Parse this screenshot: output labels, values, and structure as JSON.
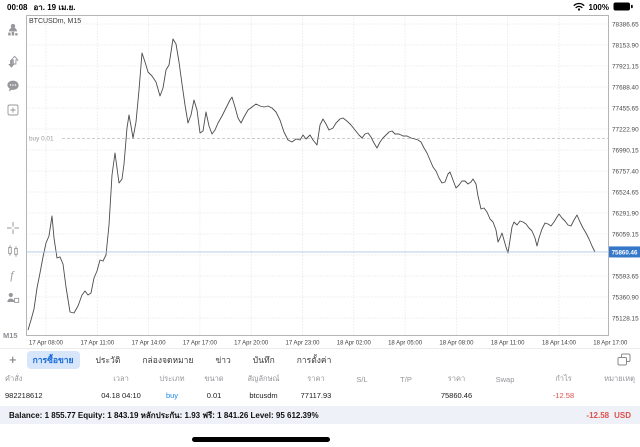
{
  "status_bar": {
    "time": "00:08",
    "date": "อา. 19 เม.ย.",
    "battery_percent": "100%"
  },
  "sidebar": {
    "timeframe": "M15"
  },
  "tabs": {
    "plus_label": "+",
    "items": [
      "การซื้อขาย",
      "ประวัติ",
      "กล่องจดหมาย",
      "ข่าว",
      "บันทึก",
      "การตั้งค่า"
    ],
    "selected_index": 0
  },
  "positions_table": {
    "headers": [
      "คำสั่ง",
      "เวลา",
      "ประเภท",
      "ขนาด",
      "สัญลักษณ์",
      "ราคา",
      "S/L",
      "T/P",
      "ราคา",
      "Swap",
      "กำไร",
      "หมายเหตุ"
    ],
    "rows": [
      {
        "cells": [
          "982218612",
          "04.18 04:10",
          "buy",
          "0.01",
          "btcusdm",
          "77117.93",
          "",
          "",
          "75860.46",
          "",
          "-12.58",
          ""
        ]
      }
    ]
  },
  "account_bar": {
    "summary": "Balance: 1 855.77 Equity: 1 843.19 หลักประกัน: 1.93 ฟรี: 1 841.26 Level: 95 612.39%",
    "profit": "-12.58",
    "currency": "USD"
  },
  "colors": {
    "badge_blue": "#3577c9",
    "buy_blue": "#1f87e8",
    "loss_red": "#e0504c",
    "selected_tab_bg": "#d7e6fa",
    "selected_tab_text": "#1669d6",
    "current_price_line": "#b3c4e0",
    "chart_line": "#4c4c4c"
  },
  "chart_data": {
    "type": "line",
    "title": "BTCUSDm, M15",
    "symbol": "BTCUSDm",
    "timeframe": "M15",
    "grid": true,
    "ylim": [
      75128.15,
      78386.65
    ],
    "y_axis": {
      "ticks": [
        78386.65,
        78153.9,
        77921.15,
        77688.4,
        77455.65,
        77222.9,
        76990.15,
        76757.4,
        76524.65,
        76291.9,
        76059.15,
        75826.4,
        75593.65,
        75360.9,
        75128.15
      ],
      "step": 232.75
    },
    "x_axis": {
      "ticks": [
        "17 Apr 08:00",
        "17 Apr 11:00",
        "17 Apr 14:00",
        "17 Apr 17:00",
        "17 Apr 20:00",
        "17 Apr 23:00",
        "18 Apr 02:00",
        "18 Apr 05:00",
        "18 Apr 08:00",
        "18 Apr 11:00",
        "18 Apr 14:00",
        "18 Apr 17:00"
      ]
    },
    "current_price": 75860.46,
    "order_line": {
      "label": "buy 0.01",
      "price": 77117.93
    },
    "series": [
      {
        "name": "BTCUSDm M15 close",
        "points": [
          [
            28,
            74995
          ],
          [
            31,
            75106
          ],
          [
            34,
            75228
          ],
          [
            37,
            75461
          ],
          [
            40,
            75627
          ],
          [
            43,
            75804
          ],
          [
            46,
            75959
          ],
          [
            49,
            76037
          ],
          [
            52,
            76259
          ],
          [
            54,
            76015
          ],
          [
            57,
            75793
          ],
          [
            60,
            75805
          ],
          [
            63,
            75727
          ],
          [
            66,
            75472
          ],
          [
            70,
            75195
          ],
          [
            74,
            75184
          ],
          [
            78,
            75261
          ],
          [
            82,
            75383
          ],
          [
            85,
            75427
          ],
          [
            88,
            75383
          ],
          [
            91,
            75405
          ],
          [
            94,
            75571
          ],
          [
            97,
            75649
          ],
          [
            100,
            75771
          ],
          [
            103,
            75760
          ],
          [
            106,
            75826
          ],
          [
            109,
            76159
          ],
          [
            112,
            76713
          ],
          [
            115,
            76957
          ],
          [
            117,
            76791
          ],
          [
            119,
            76624
          ],
          [
            122,
            76669
          ],
          [
            124,
            76835
          ],
          [
            127,
            77234
          ],
          [
            129,
            77378
          ],
          [
            131,
            77256
          ],
          [
            133,
            77123
          ],
          [
            136,
            77300
          ],
          [
            139,
            77655
          ],
          [
            142,
            78065
          ],
          [
            145,
            77966
          ],
          [
            148,
            77855
          ],
          [
            152,
            77810
          ],
          [
            156,
            77744
          ],
          [
            160,
            77589
          ],
          [
            163,
            77677
          ],
          [
            166,
            77877
          ],
          [
            169,
            77932
          ],
          [
            171,
            78076
          ],
          [
            173,
            78220
          ],
          [
            176,
            78165
          ],
          [
            179,
            77966
          ],
          [
            182,
            77722
          ],
          [
            185,
            77489
          ],
          [
            188,
            77289
          ],
          [
            191,
            77378
          ],
          [
            194,
            77544
          ],
          [
            197,
            77433
          ],
          [
            200,
            77179
          ],
          [
            203,
            77201
          ],
          [
            206,
            77411
          ],
          [
            209,
            77256
          ],
          [
            212,
            77167
          ],
          [
            215,
            77212
          ],
          [
            218,
            77289
          ],
          [
            222,
            77367
          ],
          [
            226,
            77456
          ],
          [
            230,
            77544
          ],
          [
            232,
            77577
          ],
          [
            235,
            77467
          ],
          [
            238,
            77345
          ],
          [
            241,
            77289
          ],
          [
            244,
            77356
          ],
          [
            248,
            77433
          ],
          [
            252,
            77467
          ],
          [
            256,
            77500
          ],
          [
            260,
            77478
          ],
          [
            264,
            77467
          ],
          [
            268,
            77478
          ],
          [
            272,
            77456
          ],
          [
            276,
            77411
          ],
          [
            280,
            77322
          ],
          [
            284,
            77190
          ],
          [
            288,
            77101
          ],
          [
            292,
            77079
          ],
          [
            296,
            77112
          ],
          [
            300,
            77101
          ],
          [
            303,
            77156
          ],
          [
            306,
            77112
          ],
          [
            310,
            77156
          ],
          [
            313,
            77101
          ],
          [
            317,
            77046
          ],
          [
            320,
            77267
          ],
          [
            323,
            77334
          ],
          [
            326,
            77278
          ],
          [
            329,
            77212
          ],
          [
            333,
            77234
          ],
          [
            336,
            77289
          ],
          [
            340,
            77334
          ],
          [
            343,
            77345
          ],
          [
            347,
            77311
          ],
          [
            351,
            77267
          ],
          [
            355,
            77212
          ],
          [
            359,
            77156
          ],
          [
            362,
            77123
          ],
          [
            365,
            77167
          ],
          [
            368,
            77179
          ],
          [
            371,
            77134
          ],
          [
            374,
            77068
          ],
          [
            377,
            77012
          ],
          [
            380,
            77079
          ],
          [
            383,
            77123
          ],
          [
            386,
            77156
          ],
          [
            389,
            77190
          ],
          [
            392,
            77201
          ],
          [
            395,
            77167
          ],
          [
            399,
            77167
          ],
          [
            403,
            77145
          ],
          [
            407,
            77145
          ],
          [
            411,
            77123
          ],
          [
            415,
            77112
          ],
          [
            418,
            77101
          ],
          [
            421,
            77079
          ],
          [
            424,
            77012
          ],
          [
            427,
            76957
          ],
          [
            430,
            76879
          ],
          [
            433,
            76802
          ],
          [
            436,
            76757
          ],
          [
            439,
            76680
          ],
          [
            442,
            76624
          ],
          [
            445,
            76636
          ],
          [
            448,
            76724
          ],
          [
            450,
            76746
          ],
          [
            453,
            76658
          ],
          [
            456,
            76569
          ],
          [
            459,
            76602
          ],
          [
            462,
            76647
          ],
          [
            465,
            76647
          ],
          [
            468,
            76613
          ],
          [
            471,
            76636
          ],
          [
            473,
            76669
          ],
          [
            476,
            76613
          ],
          [
            478,
            76480
          ],
          [
            481,
            76336
          ],
          [
            484,
            76347
          ],
          [
            487,
            76303
          ],
          [
            490,
            76225
          ],
          [
            493,
            76192
          ],
          [
            496,
            76104
          ],
          [
            498,
            75970
          ],
          [
            500,
            76015
          ],
          [
            502,
            76070
          ],
          [
            504,
            75993
          ],
          [
            506,
            75915
          ],
          [
            508,
            75849
          ],
          [
            510,
            75993
          ],
          [
            512,
            76137
          ],
          [
            514,
            76192
          ],
          [
            517,
            76159
          ],
          [
            520,
            76203
          ],
          [
            523,
            76192
          ],
          [
            526,
            76170
          ],
          [
            529,
            76126
          ],
          [
            532,
            76092
          ],
          [
            535,
            76015
          ],
          [
            537,
            75926
          ],
          [
            539,
            76015
          ],
          [
            542,
            76115
          ],
          [
            545,
            76181
          ],
          [
            548,
            76170
          ],
          [
            551,
            76148
          ],
          [
            554,
            76192
          ],
          [
            557,
            76248
          ],
          [
            559,
            76281
          ],
          [
            562,
            76236
          ],
          [
            565,
            76203
          ],
          [
            568,
            76159
          ],
          [
            571,
            76148
          ],
          [
            574,
            76214
          ],
          [
            577,
            76270
          ],
          [
            580,
            76192
          ],
          [
            583,
            76126
          ],
          [
            586,
            76070
          ],
          [
            589,
            76004
          ],
          [
            592,
            75926
          ],
          [
            595,
            75860
          ]
        ]
      }
    ]
  }
}
